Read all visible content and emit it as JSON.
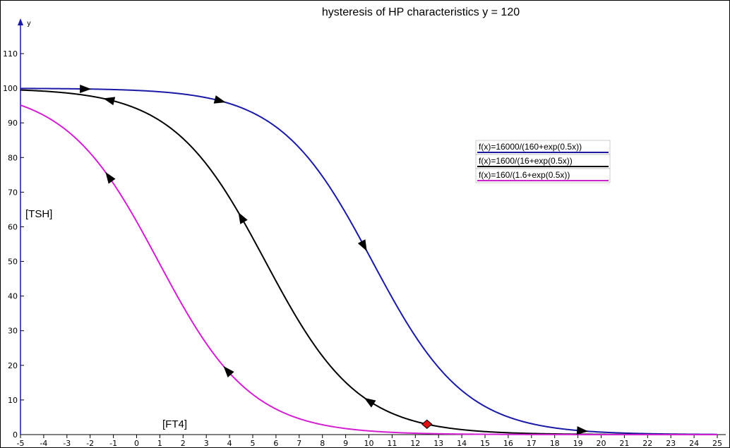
{
  "chart_data": {
    "type": "line",
    "title": "hysteresis of HP characteristics y = 120",
    "xlabel": "[FT4]",
    "ylabel": "[TSH]",
    "y_axis_name": "y",
    "xlim": [
      -5,
      25
    ],
    "ylim": [
      0,
      120
    ],
    "x_ticks": [
      -5,
      -4,
      -3,
      -2,
      -1,
      0,
      1,
      2,
      3,
      4,
      5,
      6,
      7,
      8,
      9,
      10,
      11,
      12,
      13,
      14,
      15,
      16,
      17,
      18,
      19,
      20,
      21,
      22,
      23,
      24,
      25
    ],
    "y_ticks": [
      10,
      20,
      30,
      40,
      50,
      60,
      70,
      80,
      90,
      100,
      110
    ],
    "grid": false,
    "legend_placement": "right",
    "series": [
      {
        "name": "f(x)=16000/(160+exp(0.5x))",
        "color": "#1a1aa6",
        "numerator": 16000,
        "constant": 160,
        "rate": 0.5
      },
      {
        "name": "f(x)=1600/(16+exp(0.5x))",
        "color": "#000000",
        "numerator": 1600,
        "constant": 16,
        "rate": 0.5
      },
      {
        "name": "f(x)=160/(1.6+exp(0.5x))",
        "color": "#d21fd2",
        "numerator": 160,
        "constant": 1.6,
        "rate": 0.5
      }
    ],
    "annotations": {
      "arrows": [
        {
          "series": 0,
          "x": -2.2,
          "direction": "right"
        },
        {
          "series": 0,
          "x": 3.6,
          "direction": "right"
        },
        {
          "series": 0,
          "x": 9.8,
          "direction": "right"
        },
        {
          "series": 0,
          "x": 19.2,
          "direction": "right"
        },
        {
          "series": 1,
          "x": -1.2,
          "direction": "left"
        },
        {
          "series": 1,
          "x": 4.5,
          "direction": "left"
        },
        {
          "series": 1,
          "x": 10,
          "direction": "left"
        },
        {
          "series": 2,
          "x": -1.2,
          "direction": "left"
        },
        {
          "series": 2,
          "x": 3.9,
          "direction": "left"
        }
      ],
      "marker": {
        "series": 1,
        "x": 12.5,
        "shape": "diamond",
        "color": "#dd1111"
      }
    }
  }
}
